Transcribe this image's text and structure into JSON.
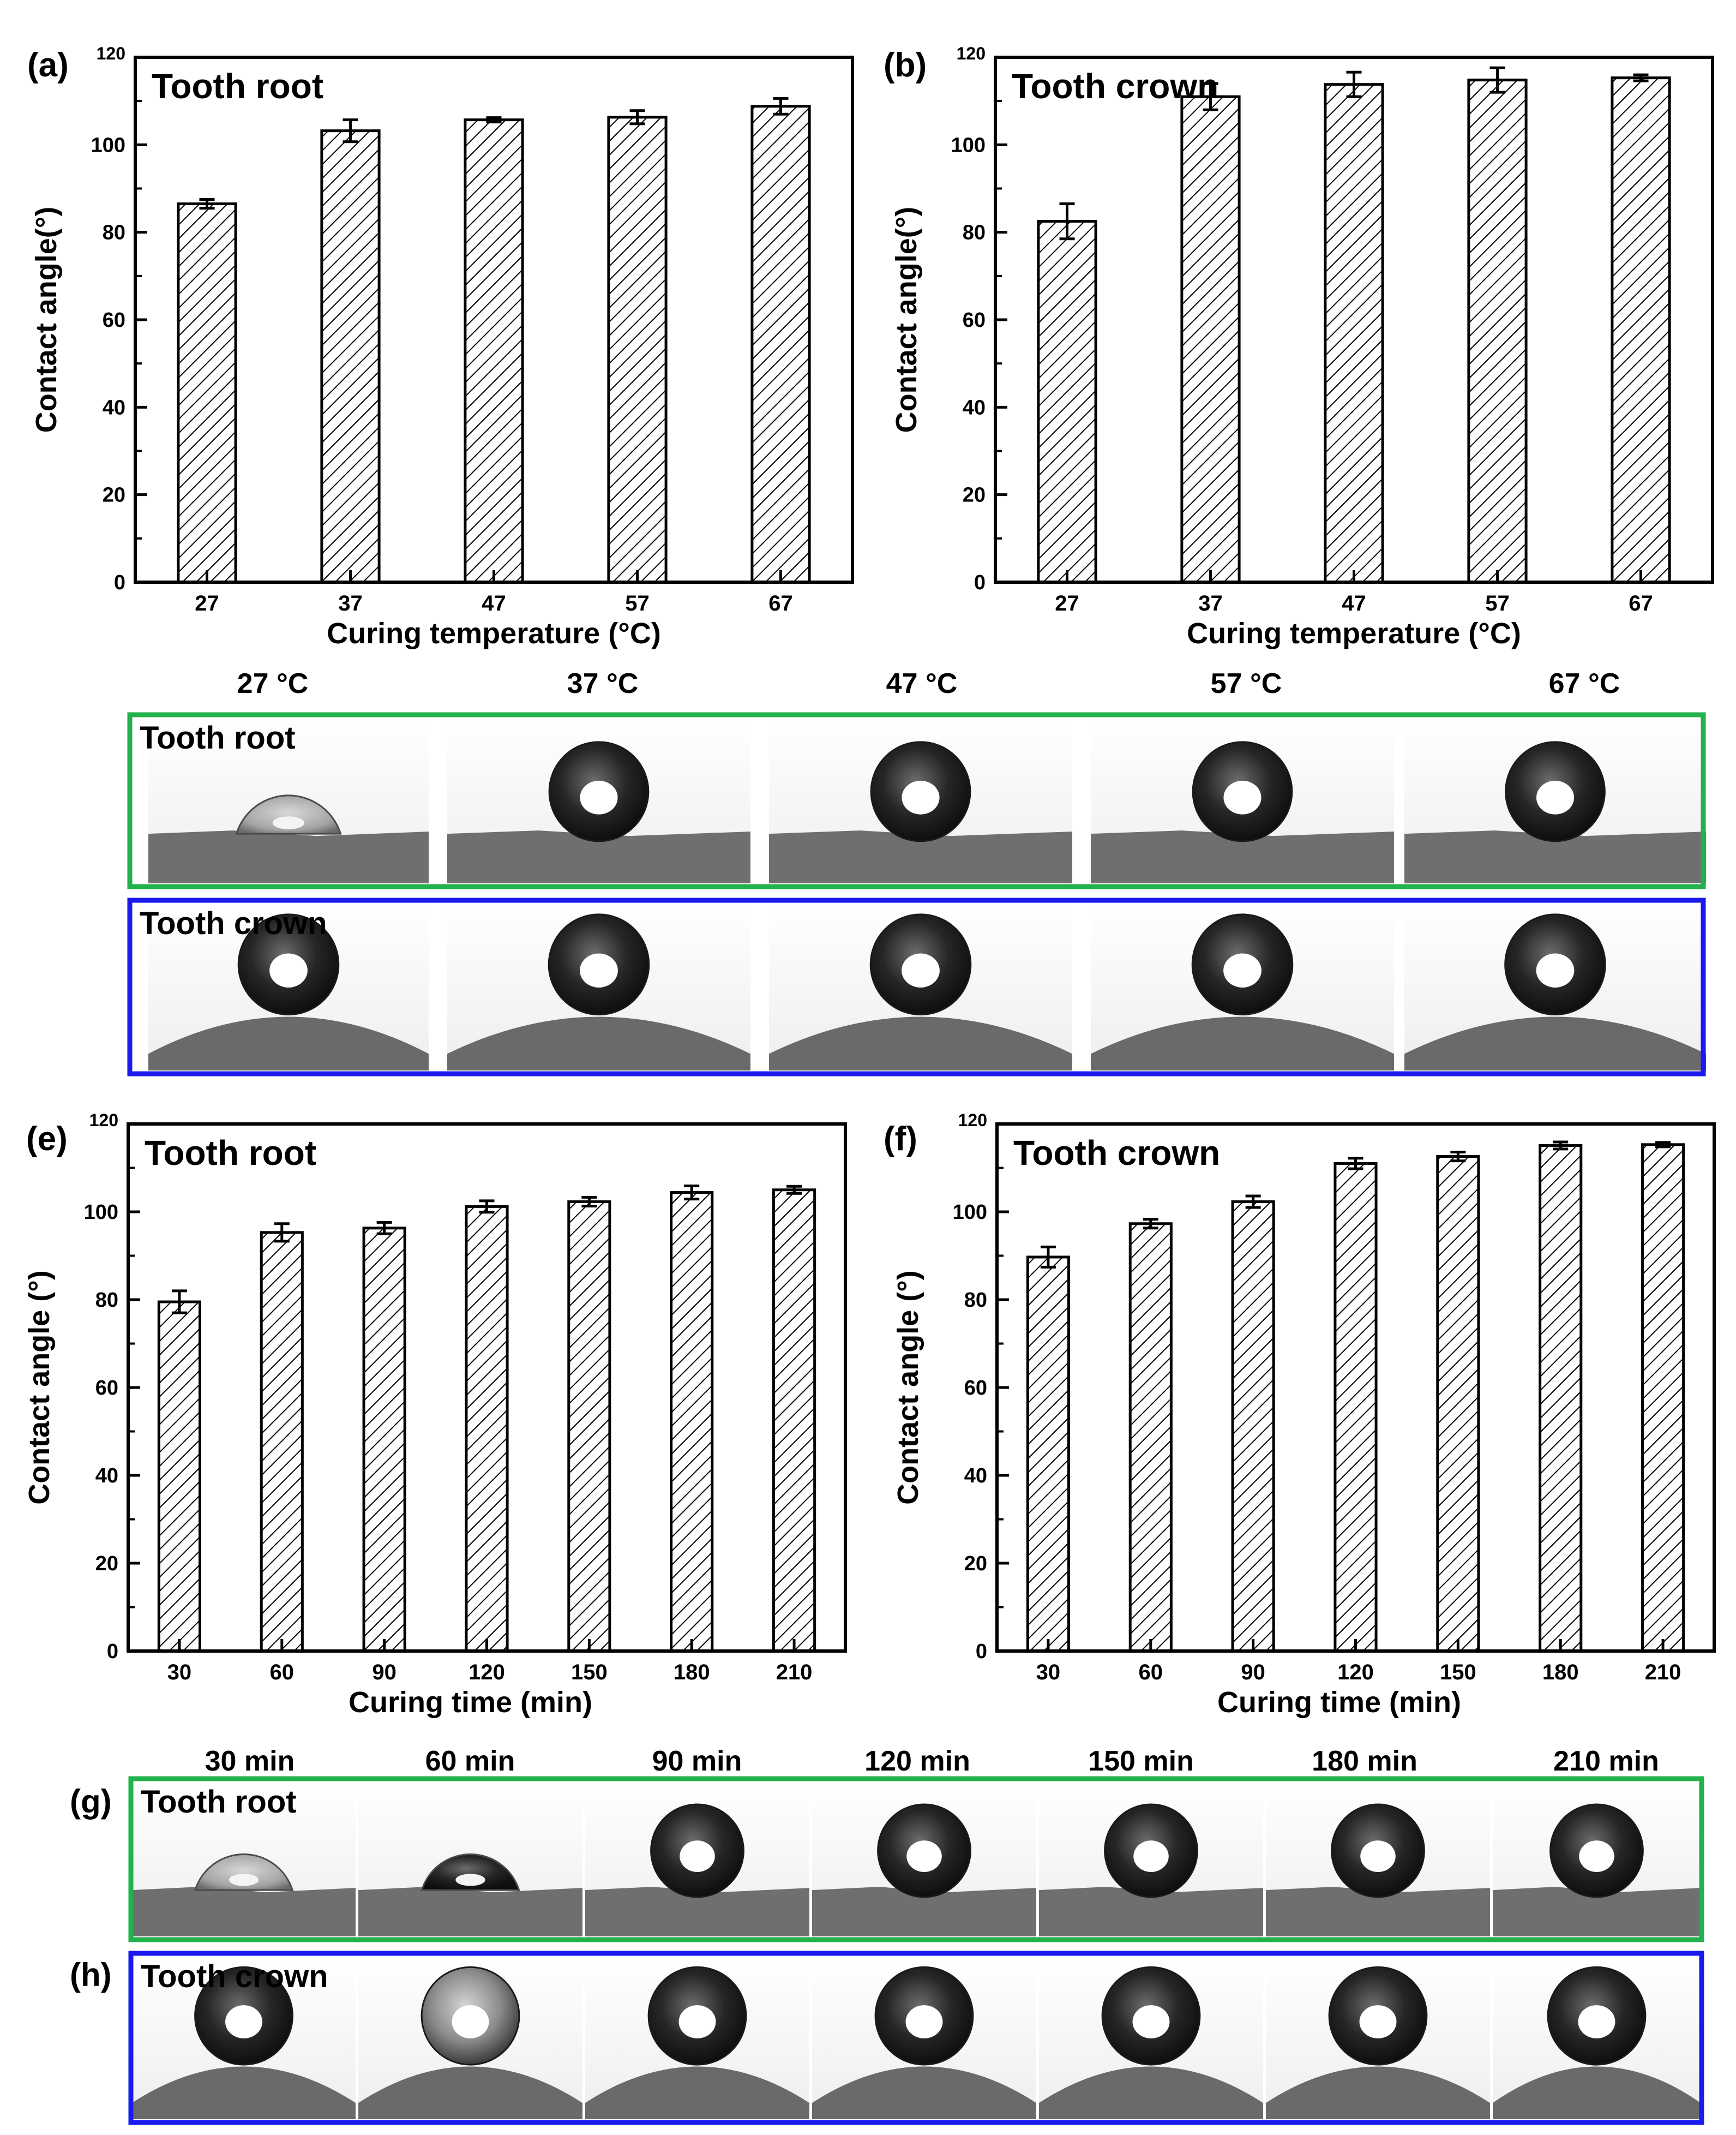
{
  "colors": {
    "green_frame": "#22b14c",
    "blue_frame": "#1a1aee",
    "bar_stroke": "#000000"
  },
  "chart_data": [
    {
      "id": "a",
      "panel_label": "(a)",
      "type": "bar",
      "title": "Tooth root",
      "xlabel": "Curing temperature (°C)",
      "ylabel": "Contact angle(°)",
      "categories": [
        "27",
        "37",
        "47",
        "57",
        "67"
      ],
      "values": [
        86.5,
        103.2,
        105.7,
        106.3,
        108.8
      ],
      "errors": [
        1.0,
        2.5,
        0.5,
        1.5,
        1.8
      ],
      "ylim": [
        0,
        120
      ],
      "yticks": [
        "0",
        "20",
        "40",
        "60",
        "80",
        "100",
        "120"
      ],
      "grid": false,
      "pattern": "diagonal-hatch"
    },
    {
      "id": "b",
      "panel_label": "(b)",
      "type": "bar",
      "title": "Tooth crown",
      "xlabel": "Curing temperature (°C)",
      "ylabel": "Contact angle(°)",
      "categories": [
        "27",
        "37",
        "47",
        "57",
        "67"
      ],
      "values": [
        82.5,
        111.0,
        113.8,
        114.8,
        115.3
      ],
      "errors": [
        4.0,
        3.0,
        2.8,
        2.8,
        0.7
      ],
      "ylim": [
        0,
        120
      ],
      "yticks": [
        "0",
        "20",
        "40",
        "60",
        "80",
        "100",
        "120"
      ],
      "grid": false,
      "pattern": "diagonal-hatch"
    },
    {
      "id": "e",
      "panel_label": "(e)",
      "type": "bar",
      "title": "Tooth root",
      "xlabel": "Curing time (min)",
      "ylabel": "Contact angle (°)",
      "categories": [
        "30",
        "60",
        "90",
        "120",
        "150",
        "180",
        "210"
      ],
      "values": [
        79.5,
        95.3,
        96.3,
        101.2,
        102.3,
        104.4,
        105.0
      ],
      "errors": [
        2.5,
        2.0,
        1.3,
        1.3,
        1.0,
        1.5,
        0.8
      ],
      "ylim": [
        0,
        120
      ],
      "yticks": [
        "0",
        "20",
        "40",
        "60",
        "80",
        "100",
        "120"
      ],
      "grid": false,
      "pattern": "diagonal-hatch"
    },
    {
      "id": "f",
      "panel_label": "(f)",
      "type": "bar",
      "title": "Tooth crown",
      "xlabel": "Curing time (min)",
      "ylabel": "Contact angle (°)",
      "categories": [
        "30",
        "60",
        "90",
        "120",
        "150",
        "180",
        "210"
      ],
      "values": [
        89.7,
        97.3,
        102.3,
        111.0,
        112.6,
        115.1,
        115.3
      ],
      "errors": [
        2.3,
        1.0,
        1.3,
        1.2,
        1.0,
        0.8,
        0.5
      ],
      "ylim": [
        0,
        120
      ],
      "yticks": [
        "0",
        "20",
        "40",
        "60",
        "80",
        "100",
        "120"
      ],
      "grid": false,
      "pattern": "diagonal-hatch"
    }
  ],
  "photo_panels": {
    "temperature": {
      "column_labels": [
        "27 °C",
        "37 °C",
        "47 °C",
        "57 °C",
        "67 °C"
      ],
      "rows": [
        {
          "id": "c",
          "label": "",
          "title": "Tooth root",
          "frame": "green",
          "surface": "flat",
          "drops": [
            "flat-translucent",
            "round-dark",
            "round-dark",
            "round-dark",
            "round-dark"
          ]
        },
        {
          "id": "d",
          "label": "",
          "title": "Tooth crown",
          "frame": "blue",
          "surface": "curved",
          "drops": [
            "round-dark",
            "round-dark",
            "round-dark",
            "round-dark",
            "round-dark"
          ]
        }
      ]
    },
    "time": {
      "column_labels": [
        "30 min",
        "60 min",
        "90 min",
        "120 min",
        "150 min",
        "180 min",
        "210 min"
      ],
      "rows": [
        {
          "id": "g",
          "label": "(g)",
          "title": "Tooth root",
          "frame": "green",
          "surface": "flat",
          "drops": [
            "flat-translucent",
            "flat-dark",
            "round-dark",
            "round-dark",
            "round-dark",
            "round-dark",
            "round-dark"
          ]
        },
        {
          "id": "h",
          "label": "(h)",
          "title": "Tooth crown",
          "frame": "blue",
          "surface": "curved",
          "drops": [
            "round-dark",
            "round-light",
            "round-dark",
            "round-dark",
            "round-dark",
            "round-dark",
            "round-dark"
          ]
        }
      ]
    }
  }
}
